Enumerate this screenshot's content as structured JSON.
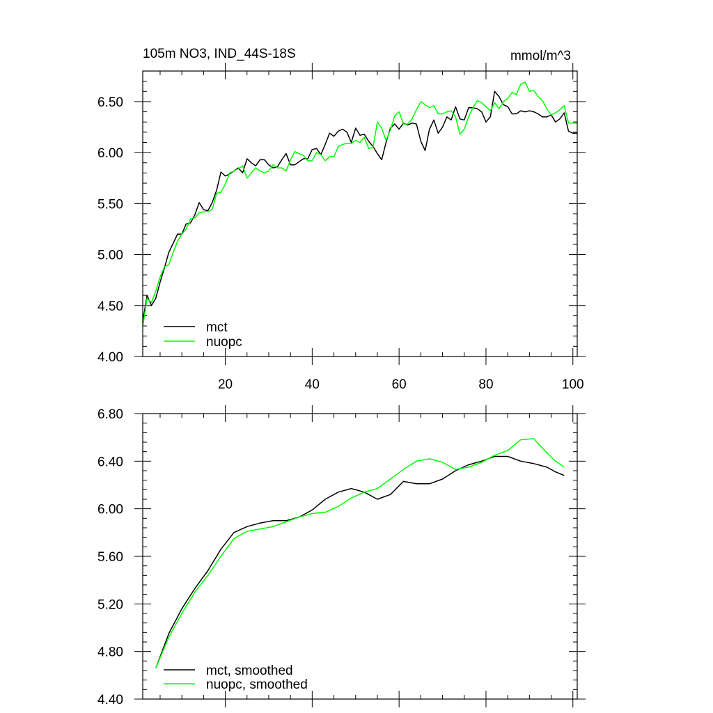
{
  "chart_data": [
    {
      "type": "line",
      "title": "105m NO3, IND_44S-18S",
      "units": "mmol/m^3",
      "xlim": [
        1,
        101
      ],
      "ylim": [
        4.0,
        6.8
      ],
      "x_ticks": [
        20,
        40,
        60,
        80,
        100
      ],
      "x_ticklabels": [
        "20",
        "40",
        "60",
        "80",
        "100"
      ],
      "y_ticks": [
        4.0,
        4.5,
        5.0,
        5.5,
        6.0,
        6.5
      ],
      "y_ticklabels": [
        "4.00",
        "4.50",
        "5.00",
        "5.50",
        "6.00",
        "6.50"
      ],
      "legend_position": "bottom-left",
      "series": [
        {
          "name": "mct",
          "color": "#000000",
          "values": [
            4.34,
            4.6,
            4.5,
            4.57,
            4.73,
            4.87,
            5.02,
            5.11,
            5.2,
            5.2,
            5.3,
            5.31,
            5.39,
            5.51,
            5.44,
            5.43,
            5.51,
            5.63,
            5.81,
            5.77,
            5.79,
            5.82,
            5.85,
            5.8,
            5.94,
            5.9,
            5.87,
            5.93,
            5.93,
            5.88,
            5.85,
            5.86,
            5.93,
            5.99,
            5.88,
            5.88,
            5.91,
            5.94,
            5.94,
            6.03,
            6.04,
            5.98,
            6.08,
            6.19,
            6.16,
            6.21,
            6.23,
            6.2,
            6.1,
            6.24,
            6.17,
            6.18,
            6.11,
            6.06,
            5.99,
            5.93,
            6.1,
            6.24,
            6.28,
            6.23,
            6.29,
            6.27,
            6.29,
            6.28,
            6.11,
            6.02,
            6.23,
            6.32,
            6.19,
            6.25,
            6.35,
            6.32,
            6.45,
            6.33,
            6.32,
            6.44,
            6.44,
            6.43,
            6.4,
            6.3,
            6.35,
            6.6,
            6.55,
            6.47,
            6.45,
            6.38,
            6.38,
            6.41,
            6.4,
            6.41,
            6.4,
            6.38,
            6.35,
            6.35,
            6.37,
            6.3,
            6.33,
            6.39,
            6.21,
            6.19,
            6.19
          ]
        },
        {
          "name": "nuopc",
          "color": "#00ff00",
          "values": [
            4.29,
            4.57,
            4.53,
            4.64,
            4.78,
            4.88,
            4.9,
            5.02,
            5.13,
            5.2,
            5.25,
            5.35,
            5.36,
            5.41,
            5.42,
            5.42,
            5.44,
            5.6,
            5.61,
            5.69,
            5.8,
            5.82,
            5.84,
            5.87,
            5.75,
            5.8,
            5.85,
            5.82,
            5.8,
            5.82,
            5.88,
            5.85,
            5.85,
            5.82,
            5.93,
            6.01,
            5.99,
            5.97,
            5.92,
            5.92,
            6.0,
            5.98,
            5.92,
            5.96,
            5.96,
            6.06,
            6.08,
            6.09,
            6.09,
            6.12,
            6.1,
            6.15,
            6.04,
            6.05,
            6.3,
            6.24,
            6.12,
            6.22,
            6.36,
            6.4,
            6.28,
            6.28,
            6.33,
            6.42,
            6.5,
            6.47,
            6.44,
            6.46,
            6.38,
            6.38,
            6.4,
            6.41,
            6.35,
            6.18,
            6.23,
            6.35,
            6.44,
            6.51,
            6.49,
            6.45,
            6.41,
            6.49,
            6.43,
            6.5,
            6.53,
            6.59,
            6.57,
            6.67,
            6.69,
            6.6,
            6.61,
            6.55,
            6.51,
            6.43,
            6.37,
            6.39,
            6.42,
            6.46,
            6.29,
            6.29,
            6.29
          ]
        }
      ]
    },
    {
      "type": "line",
      "title": "",
      "xlim": [
        1,
        101
      ],
      "ylim": [
        4.4,
        6.8
      ],
      "x_ticks": [
        20,
        40,
        60,
        80,
        100
      ],
      "y_ticks": [
        4.4,
        4.8,
        5.2,
        5.6,
        6.0,
        6.4,
        6.8
      ],
      "y_ticklabels": [
        "4.40",
        "4.80",
        "5.20",
        "5.60",
        "6.00",
        "6.40",
        "6.80"
      ],
      "legend_position": "bottom-left",
      "series": [
        {
          "name": "mct, smoothed",
          "color": "#000000",
          "x": [
            4,
            7,
            10,
            13,
            16,
            19,
            22,
            25,
            28,
            31,
            34,
            37,
            40,
            43,
            46,
            49,
            52,
            55,
            58,
            61,
            64,
            67,
            70,
            73,
            76,
            79,
            82,
            85,
            88,
            91,
            94,
            96,
            98
          ],
          "values": [
            4.66,
            4.95,
            5.16,
            5.33,
            5.48,
            5.66,
            5.8,
            5.85,
            5.88,
            5.9,
            5.9,
            5.93,
            5.99,
            6.08,
            6.14,
            6.17,
            6.14,
            6.08,
            6.12,
            6.23,
            6.21,
            6.21,
            6.25,
            6.32,
            6.37,
            6.4,
            6.44,
            6.44,
            6.4,
            6.38,
            6.35,
            6.31,
            6.28
          ]
        },
        {
          "name": "nuopc, smoothed",
          "color": "#00ff00",
          "x": [
            4,
            7,
            10,
            13,
            16,
            19,
            22,
            25,
            28,
            31,
            34,
            37,
            40,
            43,
            46,
            49,
            52,
            55,
            58,
            61,
            64,
            67,
            70,
            73,
            76,
            79,
            82,
            85,
            88,
            91,
            94,
            96,
            98
          ],
          "values": [
            4.66,
            4.92,
            5.12,
            5.3,
            5.44,
            5.6,
            5.75,
            5.81,
            5.83,
            5.85,
            5.89,
            5.93,
            5.96,
            5.97,
            6.02,
            6.09,
            6.14,
            6.17,
            6.25,
            6.33,
            6.4,
            6.42,
            6.39,
            6.33,
            6.35,
            6.39,
            6.45,
            6.49,
            6.58,
            6.59,
            6.47,
            6.4,
            6.35
          ]
        }
      ]
    }
  ]
}
